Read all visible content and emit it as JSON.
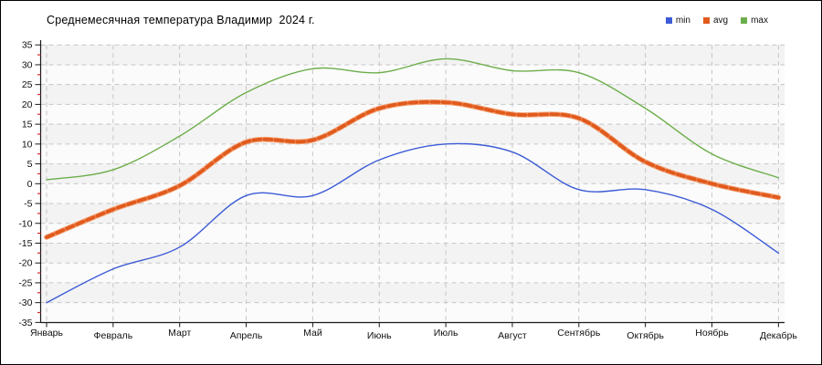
{
  "title": "Среднемесячная температура Владимир  2024 г.",
  "legend": [
    {
      "label": "min",
      "color": "#3c5bd6"
    },
    {
      "label": "avg",
      "color": "#e05a1e"
    },
    {
      "label": "max",
      "color": "#6cae4b"
    }
  ],
  "chart_data": {
    "type": "line",
    "title": "Среднемесячная температура Владимир  2024 г.",
    "categories": [
      "Январь",
      "Февраль",
      "Март",
      "Апрель",
      "Май",
      "Июнь",
      "Июль",
      "Август",
      "Сентябрь",
      "Октябрь",
      "Ноябрь",
      "Декабрь"
    ],
    "series": [
      {
        "name": "min",
        "color": "#3c5bd6",
        "halo": null,
        "width": 1.4,
        "values": [
          -30,
          -21.5,
          -16,
          -3,
          -3,
          6,
          10,
          8,
          -1.5,
          -1.5,
          -6.5,
          -17.5
        ]
      },
      {
        "name": "avg",
        "color": "#e05a1e",
        "halo": "#f5a274",
        "width": 3.8,
        "values": [
          -13.5,
          -6.5,
          -0.5,
          10.5,
          11,
          19,
          20.5,
          17.5,
          16.5,
          5.5,
          0,
          -3.5
        ]
      },
      {
        "name": "max",
        "color": "#6cae4b",
        "halo": null,
        "width": 1.4,
        "values": [
          1,
          3.5,
          12,
          23,
          29,
          28,
          31.5,
          28.5,
          28,
          19,
          7.5,
          1.5
        ]
      }
    ],
    "xlabel": "",
    "ylabel": "",
    "ylim": [
      -35,
      35
    ],
    "ytick_step": 5,
    "yminor_step": 2.5,
    "grid": "dashed",
    "legend_position": "top-right",
    "colors": {
      "grid": "#c6c6c6",
      "axis": "#1a1a1a",
      "minor_tick": "#d42a2a",
      "band_a": "#f3f3f3",
      "band_b": "#fbfbfb"
    }
  }
}
